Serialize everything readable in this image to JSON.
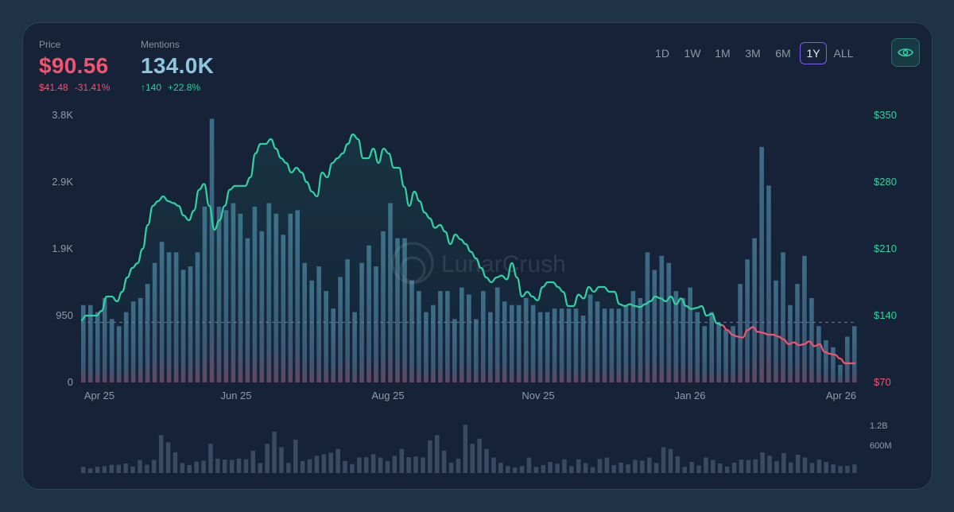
{
  "header": {
    "price_label": "Price",
    "price_value": "$90.56",
    "price_change_abs": "$41.48",
    "price_change_pct": "-31.41%",
    "mentions_label": "Mentions",
    "mentions_value": "134.0K",
    "mentions_change_abs": "↑140",
    "mentions_change_pct": "+22.8%"
  },
  "time_ranges": [
    "1D",
    "1W",
    "1M",
    "3M",
    "6M",
    "1Y",
    "ALL"
  ],
  "active_range": "1Y",
  "watermark": "LunarCrush",
  "colors": {
    "price_up": "#2fd3a3",
    "price_down": "#f2536f",
    "mention_bars": "#3e6b86",
    "volume_bars": "#3a4a62",
    "accent": "#7b5cf0"
  },
  "icons": {
    "view_toggle": "eye-icon"
  },
  "chart_data": {
    "type": "bar",
    "x_tick_labels": [
      "Apr 25",
      "Jun 25",
      "Aug 25",
      "Nov 25",
      "Jan 26",
      "Apr 26"
    ],
    "left_axis": {
      "ticks": [
        "3.8K",
        "2.9K",
        "1.9K",
        "950",
        "0"
      ],
      "ylim": [
        0,
        3800
      ]
    },
    "right_axis": {
      "ticks": [
        "$350",
        "$280",
        "$210",
        "$140",
        "$70"
      ],
      "ylim": [
        70,
        350
      ]
    },
    "volume_axis": {
      "ticks": [
        "1.2B",
        "600M"
      ],
      "ylim": [
        0,
        1200000000
      ]
    },
    "reference_line_price": 133,
    "series": [
      {
        "name": "Mentions",
        "type": "bar",
        "values": [
          1100,
          1100,
          1000,
          1200,
          900,
          800,
          1000,
          1150,
          1200,
          1400,
          1700,
          2000,
          1850,
          1850,
          1600,
          1650,
          1850,
          2500,
          3750,
          2500,
          2450,
          2550,
          2400,
          2050,
          2500,
          2150,
          2550,
          2400,
          2100,
          2400,
          2450,
          1700,
          1450,
          1650,
          1300,
          1050,
          1500,
          1750,
          1000,
          1700,
          1950,
          1650,
          2150,
          2550,
          2050,
          2050,
          1450,
          1300,
          1000,
          1100,
          1300,
          1300,
          900,
          1350,
          1250,
          900,
          1300,
          1000,
          1350,
          1150,
          1100,
          1100,
          1200,
          1100,
          1000,
          1000,
          1050,
          1050,
          1050,
          1050,
          950,
          1250,
          1150,
          1050,
          1050,
          1050,
          1100,
          1300,
          1200,
          1850,
          1600,
          1800,
          1700,
          1300,
          1200,
          1350,
          1000,
          800,
          1000,
          850,
          750,
          800,
          1400,
          1750,
          2050,
          3350,
          2800,
          1450,
          1850,
          1100,
          1400,
          1800,
          1200,
          800,
          600,
          500,
          250,
          650,
          800
        ]
      },
      {
        "name": "Price",
        "type": "line",
        "values": [
          135,
          140,
          140,
          140,
          145,
          160,
          160,
          155,
          165,
          180,
          190,
          195,
          210,
          235,
          255,
          260,
          265,
          260,
          258,
          255,
          245,
          240,
          250,
          272,
          278,
          255,
          230,
          240,
          255,
          272,
          276,
          276,
          276,
          285,
          310,
          320,
          320,
          325,
          315,
          305,
          300,
          290,
          295,
          290,
          280,
          270,
          265,
          290,
          285,
          300,
          305,
          310,
          320,
          330,
          325,
          305,
          305,
          315,
          300,
          315,
          310,
          295,
          295,
          275,
          255,
          270,
          260,
          248,
          242,
          232,
          235,
          228,
          215,
          225,
          220,
          215,
          207,
          200,
          190,
          180,
          175,
          180,
          182,
          178,
          195,
          180,
          160,
          165,
          160,
          156,
          170,
          175,
          175,
          170,
          165,
          150,
          150,
          162,
          158,
          170,
          165,
          170,
          170,
          165,
          165,
          152,
          150,
          152,
          150,
          149,
          152,
          155,
          160,
          158,
          155,
          160,
          152,
          158,
          150,
          147,
          148,
          150,
          140,
          142,
          132,
          130,
          125,
          120,
          118,
          117,
          125,
          128,
          123,
          122,
          120,
          120,
          118,
          115,
          110,
          112,
          109,
          110,
          113,
          108,
          110,
          102,
          100,
          99,
          95,
          90,
          90,
          90
        ]
      },
      {
        "name": "Volume",
        "type": "bar",
        "values": [
          180000000,
          130000000,
          180000000,
          200000000,
          240000000,
          240000000,
          280000000,
          190000000,
          380000000,
          240000000,
          380000000,
          1100000000,
          890000000,
          600000000,
          290000000,
          230000000,
          330000000,
          360000000,
          850000000,
          420000000,
          390000000,
          380000000,
          420000000,
          400000000,
          650000000,
          290000000,
          850000000,
          1200000000,
          750000000,
          290000000,
          970000000,
          350000000,
          400000000,
          500000000,
          550000000,
          590000000,
          700000000,
          350000000,
          260000000,
          450000000,
          460000000,
          550000000,
          450000000,
          350000000,
          500000000,
          700000000,
          460000000,
          480000000,
          450000000,
          950000000,
          1100000000,
          650000000,
          300000000,
          420000000,
          1400000000,
          850000000,
          1000000000,
          700000000,
          450000000,
          300000000,
          200000000,
          160000000,
          200000000,
          450000000,
          180000000,
          230000000,
          320000000,
          270000000,
          400000000,
          200000000,
          400000000,
          290000000,
          170000000,
          410000000,
          450000000,
          230000000,
          300000000,
          250000000,
          380000000,
          360000000,
          450000000,
          290000000,
          750000000,
          700000000,
          490000000,
          180000000,
          320000000,
          220000000,
          450000000,
          380000000,
          280000000,
          190000000,
          300000000,
          390000000,
          380000000,
          400000000,
          600000000,
          500000000,
          340000000,
          580000000,
          310000000,
          530000000,
          450000000,
          290000000,
          390000000,
          320000000,
          250000000,
          200000000,
          210000000,
          250000000
        ]
      }
    ],
    "grid": false,
    "legend": "none"
  }
}
